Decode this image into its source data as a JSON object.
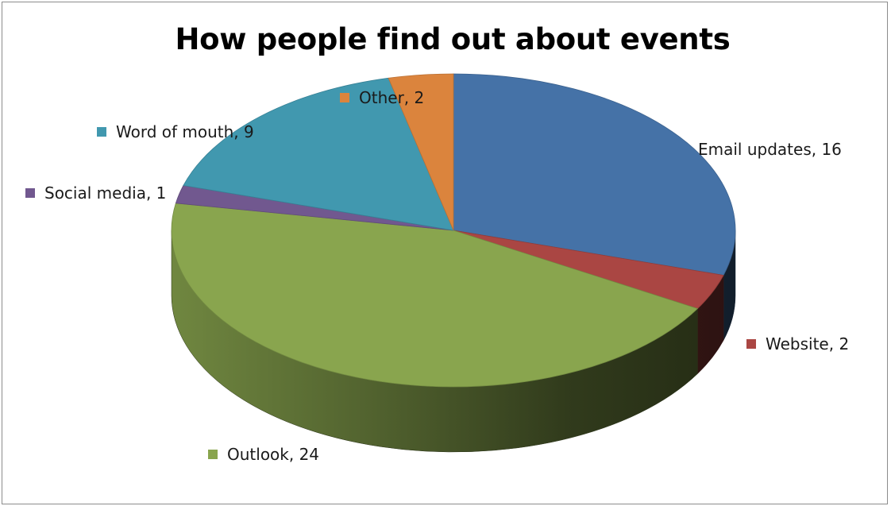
{
  "chart_data": {
    "type": "pie",
    "title": "How people find out about events",
    "slices": [
      {
        "name": "Email updates",
        "value": 16,
        "label": "Email updates, 16",
        "color": "#4572A7"
      },
      {
        "name": "Website",
        "value": 2,
        "label": "Website, 2",
        "color": "#AA4643"
      },
      {
        "name": "Outlook",
        "value": 24,
        "label": "Outlook, 24",
        "color": "#89A54E"
      },
      {
        "name": "Social media",
        "value": 1,
        "label": "Social media, 1",
        "color": "#71588F"
      },
      {
        "name": "Word of mouth",
        "value": 9,
        "label": "Word of mouth, 9",
        "color": "#4198AF"
      },
      {
        "name": "Other",
        "value": 2,
        "label": "Other, 2",
        "color": "#DB843D"
      }
    ],
    "three_d": true,
    "legend": "none"
  }
}
